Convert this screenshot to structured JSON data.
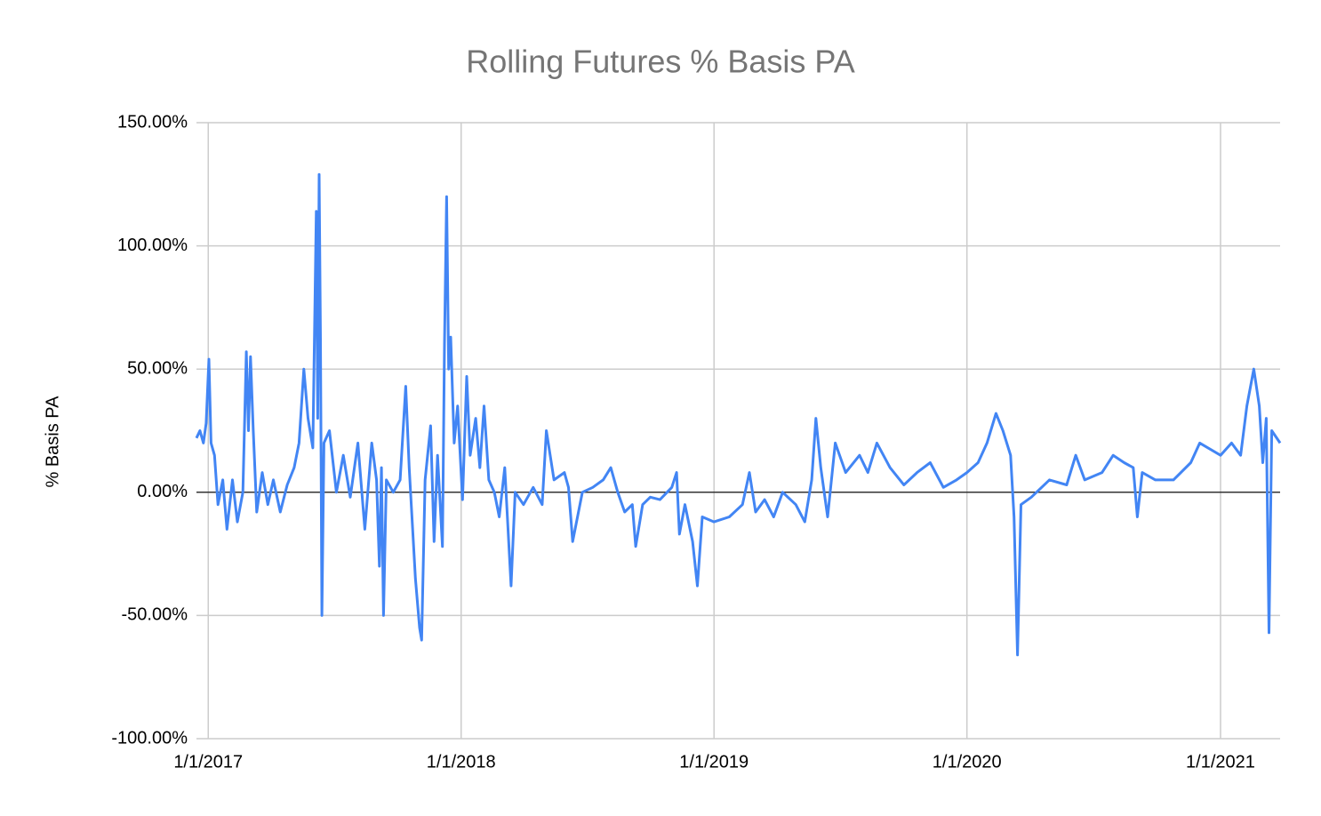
{
  "chart_data": {
    "type": "line",
    "title": "Rolling Futures % Basis PA",
    "y_label": "% Basis PA",
    "color": "#4285f4",
    "grid": true,
    "x": [
      "12/15/2016",
      "12/20/2016",
      "12/25/2016",
      "12/29/2016",
      "1/2/2017",
      "1/5/2017",
      "1/10/2017",
      "1/15/2017",
      "1/22/2017",
      "1/28/2017",
      "2/5/2017",
      "2/12/2017",
      "2/20/2017",
      "2/25/2017",
      "2/28/2017",
      "3/3/2017",
      "3/7/2017",
      "3/12/2017",
      "3/20/2017",
      "3/28/2017",
      "4/5/2017",
      "4/15/2017",
      "4/25/2017",
      "5/5/2017",
      "5/12/2017",
      "5/19/2017",
      "5/25/2017",
      "6/1/2017",
      "6/6/2017",
      "6/8/2017",
      "6/10/2017",
      "6/12/2017",
      "6/14/2017",
      "6/17/2017",
      "6/25/2017",
      "7/5/2017",
      "7/15/2017",
      "7/25/2017",
      "8/5/2017",
      "8/15/2017",
      "8/25/2017",
      "9/1/2017",
      "9/5/2017",
      "9/8/2017",
      "9/11/2017",
      "9/15/2017",
      "9/25/2017",
      "10/5/2017",
      "10/13/2017",
      "10/18/2017",
      "10/27/2017",
      "11/2/2017",
      "11/5/2017",
      "11/10/2017",
      "11/18/2017",
      "11/23/2017",
      "11/28/2017",
      "12/5/2017",
      "12/8/2017",
      "12/11/2017",
      "12/14/2017",
      "12/17/2017",
      "12/22/2017",
      "12/27/2017",
      "1/3/2018",
      "1/9/2018",
      "1/14/2018",
      "1/22/2018",
      "1/28/2018",
      "2/3/2018",
      "2/10/2018",
      "2/18/2018",
      "2/25/2018",
      "3/5/2018",
      "3/14/2018",
      "3/20/2018",
      "4/1/2018",
      "4/15/2018",
      "4/28/2018",
      "5/4/2018",
      "5/15/2018",
      "5/30/2018",
      "6/5/2018",
      "6/11/2018",
      "6/25/2018",
      "7/10/2018",
      "7/25/2018",
      "8/5/2018",
      "8/15/2018",
      "8/25/2018",
      "9/5/2018",
      "9/10/2018",
      "9/20/2018",
      "10/1/2018",
      "10/15/2018",
      "11/1/2018",
      "11/8/2018",
      "11/12/2018",
      "11/20/2018",
      "12/1/2018",
      "12/8/2018",
      "12/15/2018",
      "1/1/2019",
      "1/23/2019",
      "2/11/2019",
      "2/21/2019",
      "3/2/2019",
      "3/15/2019",
      "3/28/2019",
      "4/10/2019",
      "4/29/2019",
      "5/12/2019",
      "5/22/2019",
      "5/28/2019",
      "6/4/2019",
      "6/14/2019",
      "6/25/2019",
      "7/10/2019",
      "7/30/2019",
      "8/11/2019",
      "8/24/2019",
      "9/12/2019",
      "10/2/2019",
      "10/21/2019",
      "11/9/2019",
      "11/28/2019",
      "12/17/2019",
      "1/1/2020",
      "1/17/2020",
      "1/30/2020",
      "2/12/2020",
      "2/22/2020",
      "3/4/2020",
      "3/9/2020",
      "3/14/2020",
      "3/19/2020",
      "4/3/2020",
      "4/29/2020",
      "5/24/2020",
      "6/6/2020",
      "6/19/2020",
      "7/14/2020",
      "7/30/2020",
      "8/15/2020",
      "8/28/2020",
      "9/3/2020",
      "9/10/2020",
      "9/29/2020",
      "10/25/2020",
      "11/19/2020",
      "12/2/2020",
      "1/1/2021",
      "1/17/2021",
      "1/30/2021",
      "2/8/2021",
      "2/18/2021",
      "2/26/2021",
      "3/3/2021",
      "3/8/2021",
      "3/12/2021",
      "3/16/2021",
      "3/28/2021"
    ],
    "values": [
      22,
      25,
      20,
      28,
      54,
      20,
      15,
      -5,
      5,
      -15,
      5,
      -12,
      0,
      57,
      25,
      55,
      25,
      -8,
      8,
      -5,
      5,
      -8,
      3,
      10,
      20,
      50,
      30,
      18,
      114,
      30,
      129,
      62,
      -50,
      20,
      25,
      0,
      15,
      -2,
      20,
      -15,
      20,
      5,
      -30,
      10,
      -50,
      5,
      0,
      5,
      43,
      10,
      -35,
      -55,
      -60,
      5,
      27,
      -20,
      15,
      -22,
      60,
      120,
      50,
      63,
      20,
      35,
      -3,
      47,
      15,
      30,
      10,
      35,
      5,
      0,
      -10,
      10,
      -38,
      0,
      -5,
      2,
      -5,
      25,
      5,
      8,
      2,
      -20,
      0,
      2,
      5,
      10,
      0,
      -8,
      -5,
      -22,
      -5,
      -2,
      -3,
      2,
      8,
      -17,
      -5,
      -20,
      -38,
      -10,
      -12,
      -10,
      -5,
      8,
      -8,
      -3,
      -10,
      0,
      -5,
      -12,
      5,
      30,
      10,
      -10,
      20,
      8,
      15,
      8,
      20,
      10,
      3,
      8,
      12,
      2,
      5,
      8,
      12,
      20,
      32,
      25,
      15,
      -10,
      -66,
      -5,
      -2,
      5,
      3,
      15,
      5,
      8,
      15,
      12,
      10,
      -10,
      8,
      5,
      5,
      12,
      20,
      15,
      20,
      15,
      35,
      50,
      35,
      12,
      30,
      -57,
      25,
      20
    ],
    "xlim": [
      "12/15/2016",
      "3/28/2021"
    ],
    "xticks": [
      "1/1/2017",
      "1/1/2018",
      "1/1/2019",
      "1/1/2020",
      "1/1/2021"
    ],
    "ylim": [
      -100,
      150
    ],
    "yticks": [
      {
        "value": -100,
        "label": "-100.00%"
      },
      {
        "value": -50,
        "label": "-50.00%"
      },
      {
        "value": 0,
        "label": "0.00%"
      },
      {
        "value": 50,
        "label": "50.00%"
      },
      {
        "value": 100,
        "label": "100.00%"
      },
      {
        "value": 150,
        "label": "150.00%"
      }
    ]
  }
}
